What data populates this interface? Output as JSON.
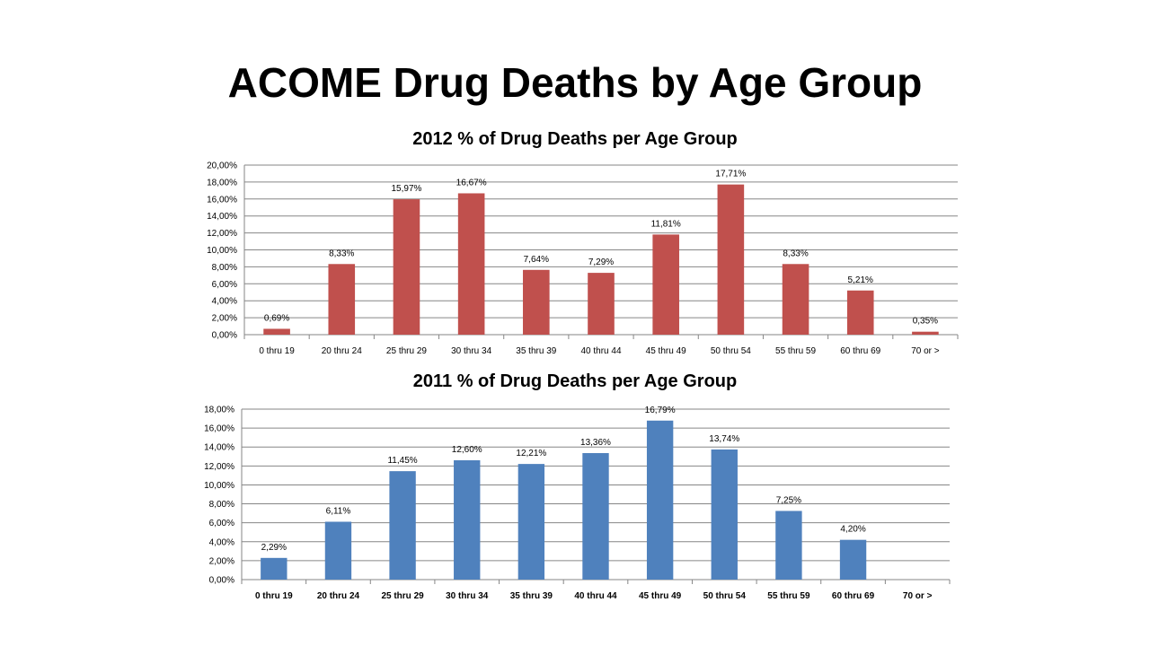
{
  "slide": {
    "title": "ACOME Drug Deaths by Age Group"
  },
  "chart_data": [
    {
      "type": "bar",
      "title": "2012 % of Drug Deaths per Age Group",
      "categories": [
        "0 thru 19",
        "20 thru 24",
        "25 thru 29",
        "30 thru 34",
        "35 thru 39",
        "40 thru 44",
        "45 thru 49",
        "50 thru 54",
        "55 thru 59",
        "60 thru 69",
        "70 or >"
      ],
      "values": [
        0.69,
        8.33,
        15.97,
        16.67,
        7.64,
        7.29,
        11.81,
        17.71,
        8.33,
        5.21,
        0.35
      ],
      "data_labels": [
        "0,69%",
        "8,33%",
        "15,97%",
        "16,67%",
        "7,64%",
        "7,29%",
        "11,81%",
        "17,71%",
        "8,33%",
        "5,21%",
        "0,35%"
      ],
      "ylim": [
        0,
        20
      ],
      "y_ticks": [
        "0,00%",
        "2,00%",
        "4,00%",
        "6,00%",
        "8,00%",
        "10,00%",
        "12,00%",
        "14,00%",
        "16,00%",
        "18,00%",
        "20,00%"
      ],
      "color": "#C0504D",
      "grid": true
    },
    {
      "type": "bar",
      "title": "2011 % of Drug Deaths per Age Group",
      "categories": [
        "0 thru 19",
        "20 thru 24",
        "25 thru 29",
        "30 thru 34",
        "35 thru 39",
        "40 thru 44",
        "45 thru 49",
        "50 thru 54",
        "55 thru 59",
        "60 thru 69",
        "70 or >"
      ],
      "values": [
        2.29,
        6.11,
        11.45,
        12.6,
        12.21,
        13.36,
        16.79,
        13.74,
        7.25,
        4.2,
        null
      ],
      "data_labels": [
        "2,29%",
        "6,11%",
        "11,45%",
        "12,60%",
        "12,21%",
        "13,36%",
        "16,79%",
        "13,74%",
        "7,25%",
        "4,20%",
        ""
      ],
      "ylim": [
        0,
        18
      ],
      "y_ticks": [
        "0,00%",
        "2,00%",
        "4,00%",
        "6,00%",
        "8,00%",
        "10,00%",
        "12,00%",
        "14,00%",
        "16,00%",
        "18,00%"
      ],
      "color": "#4F81BD",
      "grid": true
    }
  ]
}
